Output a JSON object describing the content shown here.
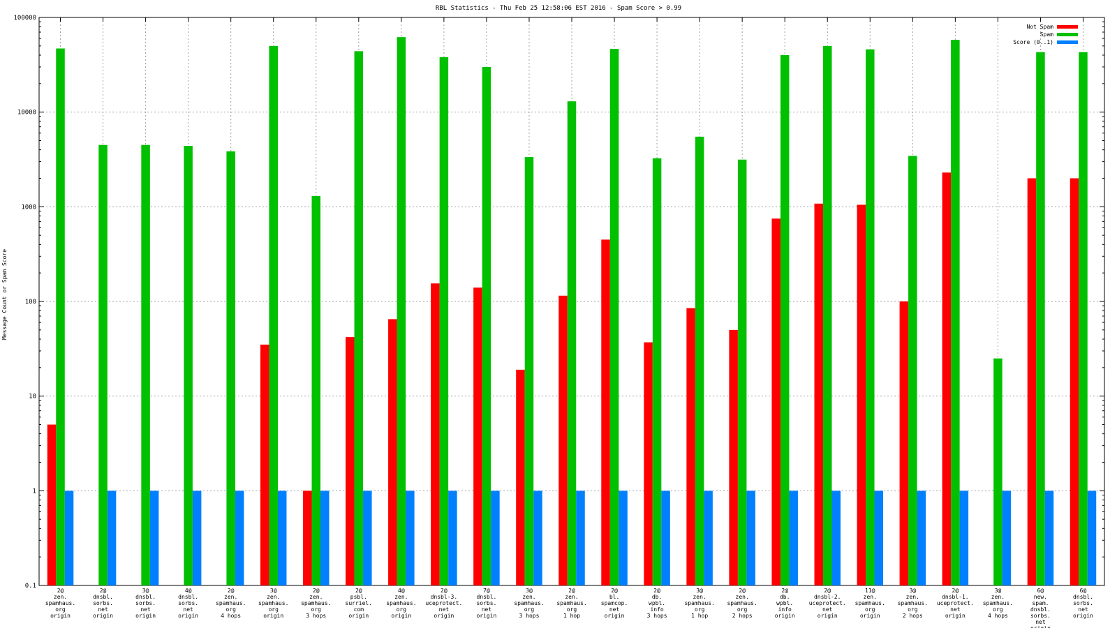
{
  "chart_data": {
    "type": "bar",
    "title": "RBL Statistics - Thu Feb 25 12:58:06 EST 2016 - Spam Score > 0.99",
    "xlabel": "",
    "ylabel": "Message Count or Spam Score",
    "yscale": "log",
    "ylim": [
      0.1,
      100000
    ],
    "yticks": [
      {
        "value": 0.1,
        "label": "0.1"
      },
      {
        "value": 1,
        "label": "1"
      },
      {
        "value": 10,
        "label": "10"
      },
      {
        "value": 100,
        "label": "100"
      },
      {
        "value": 1000,
        "label": "1000"
      },
      {
        "value": 10000,
        "label": "10000"
      },
      {
        "value": 100000,
        "label": "100000"
      }
    ],
    "grid": true,
    "legend_position": "top-right",
    "categories": [
      [
        "2@",
        "zen.",
        "spamhaus.",
        "org",
        "origin"
      ],
      [
        "2@",
        "dnsbl.",
        "sorbs.",
        "net",
        "origin"
      ],
      [
        "3@",
        "dnsbl.",
        "sorbs.",
        "net",
        "origin"
      ],
      [
        "4@",
        "dnsbl.",
        "sorbs.",
        "net",
        "origin"
      ],
      [
        "2@",
        "zen.",
        "spamhaus.",
        "org",
        "4 hops"
      ],
      [
        "3@",
        "zen.",
        "spamhaus.",
        "org",
        "origin"
      ],
      [
        "2@",
        "zen.",
        "spamhaus.",
        "org",
        "3 hops"
      ],
      [
        "2@",
        "psbl.",
        "surriel.",
        "com",
        "origin"
      ],
      [
        "4@",
        "zen.",
        "spamhaus.",
        "org",
        "origin"
      ],
      [
        "2@",
        "dnsbl-3.",
        "uceprotect.",
        "net",
        "origin"
      ],
      [
        "7@",
        "dnsbl.",
        "sorbs.",
        "net",
        "origin"
      ],
      [
        "3@",
        "zen.",
        "spamhaus.",
        "org",
        "3 hops"
      ],
      [
        "2@",
        "zen.",
        "spamhaus.",
        "org",
        "1 hop"
      ],
      [
        "2@",
        "bl.",
        "spamcop.",
        "net",
        "origin"
      ],
      [
        "2@",
        "db.",
        "wpbl.",
        "info",
        "3 hops"
      ],
      [
        "3@",
        "zen.",
        "spamhaus.",
        "org",
        "1 hop"
      ],
      [
        "2@",
        "zen.",
        "spamhaus.",
        "org",
        "2 hops"
      ],
      [
        "2@",
        "db.",
        "wpbl.",
        "info",
        "origin"
      ],
      [
        "2@",
        "dnsbl-2.",
        "uceprotect.",
        "net",
        "origin"
      ],
      [
        "11@",
        "zen.",
        "spamhaus.",
        "org",
        "origin"
      ],
      [
        "3@",
        "zen.",
        "spamhaus.",
        "org",
        "2 hops"
      ],
      [
        "2@",
        "dnsbl-1.",
        "uceprotect.",
        "net",
        "origin"
      ],
      [
        "3@",
        "zen.",
        "spamhaus.",
        "org",
        "4 hops"
      ],
      [
        "6@",
        "new.",
        "spam.",
        "dnsbl.",
        "sorbs.",
        "net",
        "origin"
      ],
      [
        "6@",
        "dnsbl.",
        "sorbs.",
        "net",
        "origin"
      ]
    ],
    "series": [
      {
        "name": "Not Spam",
        "color": "#ff0000",
        "values": [
          5,
          0,
          0,
          0,
          0,
          35,
          1,
          42,
          65,
          155,
          140,
          19,
          115,
          450,
          37,
          85,
          50,
          750,
          1080,
          1050,
          100,
          2300,
          0,
          2000,
          2000
        ]
      },
      {
        "name": "Spam",
        "color": "#00c000",
        "values": [
          47000,
          4500,
          4500,
          4400,
          3850,
          50000,
          1300,
          44000,
          62000,
          38000,
          30000,
          3350,
          13000,
          46500,
          3250,
          5500,
          3150,
          40000,
          50000,
          46000,
          3450,
          58000,
          25,
          43000,
          43000
        ]
      },
      {
        "name": "Score (0..1)",
        "color": "#0080ff",
        "values": [
          1,
          1,
          1,
          1,
          1,
          1,
          1,
          1,
          1,
          1,
          1,
          1,
          1,
          1,
          1,
          1,
          1,
          1,
          1,
          1,
          1,
          1,
          1,
          1,
          1
        ]
      }
    ]
  }
}
